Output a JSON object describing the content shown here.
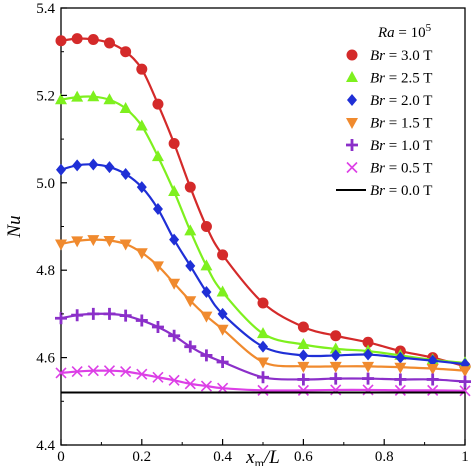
{
  "chart_data": {
    "type": "line",
    "xlabel": "x_m/L",
    "ylabel": "Nu",
    "xlim": [
      0,
      1
    ],
    "ylim": [
      4.4,
      5.4
    ],
    "x_ticks": [
      "0",
      "0.2",
      "0.4",
      "0.6",
      "0.8",
      "1"
    ],
    "y_ticks": [
      "4.4",
      "4.6",
      "4.8",
      "5.0",
      "5.2",
      "5.4"
    ],
    "legend": {
      "placement": "top-right",
      "title": "Ra = 10^5",
      "entries": [
        "Br = 3.0 T",
        "Br = 2.5 T",
        "Br = 2.0 T",
        "Br = 1.5 T",
        "Br = 1.0 T",
        "Br = 0.5 T",
        "Br = 0.0 T"
      ]
    },
    "grid": false,
    "series": [
      {
        "name": "Br = 3.0 T",
        "color": "#d42a2a",
        "marker": "circle",
        "x": [
          0,
          0.04,
          0.08,
          0.12,
          0.16,
          0.2,
          0.24,
          0.28,
          0.32,
          0.36,
          0.4,
          0.5,
          0.6,
          0.68,
          0.76,
          0.84,
          0.92,
          1.0
        ],
        "y": [
          5.325,
          5.33,
          5.328,
          5.32,
          5.3,
          5.26,
          5.18,
          5.09,
          4.99,
          4.9,
          4.835,
          4.725,
          4.67,
          4.65,
          4.635,
          4.615,
          4.6,
          4.58
        ]
      },
      {
        "name": "Br = 2.5 T",
        "color": "#7ef01e",
        "marker": "triangle",
        "x": [
          0,
          0.04,
          0.08,
          0.12,
          0.16,
          0.2,
          0.24,
          0.28,
          0.32,
          0.36,
          0.4,
          0.5,
          0.6,
          0.68,
          0.76,
          0.84,
          0.92,
          1.0
        ],
        "y": [
          5.19,
          5.196,
          5.197,
          5.19,
          5.17,
          5.13,
          5.06,
          4.98,
          4.89,
          4.81,
          4.75,
          4.655,
          4.63,
          4.62,
          4.615,
          4.605,
          4.595,
          4.588
        ]
      },
      {
        "name": "Br = 2.0 T",
        "color": "#1f2fd6",
        "marker": "diamond",
        "x": [
          0,
          0.04,
          0.08,
          0.12,
          0.16,
          0.2,
          0.24,
          0.28,
          0.32,
          0.36,
          0.4,
          0.5,
          0.6,
          0.68,
          0.76,
          0.84,
          0.92,
          1.0
        ],
        "y": [
          5.03,
          5.04,
          5.042,
          5.036,
          5.02,
          4.99,
          4.94,
          4.87,
          4.81,
          4.75,
          4.7,
          4.625,
          4.605,
          4.605,
          4.607,
          4.6,
          4.593,
          4.585
        ]
      },
      {
        "name": "Br = 1.5 T",
        "color": "#f08a2e",
        "marker": "triangle-down",
        "x": [
          0,
          0.04,
          0.08,
          0.12,
          0.16,
          0.2,
          0.24,
          0.28,
          0.32,
          0.36,
          0.4,
          0.5,
          0.6,
          0.68,
          0.76,
          0.84,
          0.92,
          1.0
        ],
        "y": [
          4.86,
          4.867,
          4.87,
          4.868,
          4.86,
          4.84,
          4.81,
          4.77,
          4.73,
          4.695,
          4.665,
          4.59,
          4.58,
          4.58,
          4.58,
          4.578,
          4.575,
          4.57
        ]
      },
      {
        "name": "Br = 1.0 T",
        "color": "#8b2fc9",
        "marker": "plus",
        "x": [
          0,
          0.04,
          0.08,
          0.12,
          0.16,
          0.2,
          0.24,
          0.28,
          0.32,
          0.36,
          0.4,
          0.5,
          0.6,
          0.68,
          0.76,
          0.84,
          0.92,
          1.0
        ],
        "y": [
          4.69,
          4.697,
          4.7,
          4.7,
          4.696,
          4.685,
          4.67,
          4.65,
          4.625,
          4.605,
          4.59,
          4.555,
          4.55,
          4.552,
          4.552,
          4.55,
          4.55,
          4.545
        ]
      },
      {
        "name": "Br = 0.5 T",
        "color": "#dc3fe6",
        "marker": "x",
        "x": [
          0,
          0.04,
          0.08,
          0.12,
          0.16,
          0.2,
          0.24,
          0.28,
          0.32,
          0.36,
          0.4,
          0.5,
          0.6,
          0.68,
          0.76,
          0.84,
          0.92,
          1.0
        ],
        "y": [
          4.565,
          4.568,
          4.57,
          4.57,
          4.568,
          4.562,
          4.555,
          4.548,
          4.54,
          4.535,
          4.53,
          4.525,
          4.525,
          4.526,
          4.526,
          4.525,
          4.525,
          4.524
        ]
      },
      {
        "name": "Br = 0.0 T",
        "color": "#000000",
        "marker": "none",
        "x": [
          0,
          1
        ],
        "y": [
          4.52,
          4.52
        ]
      }
    ]
  }
}
